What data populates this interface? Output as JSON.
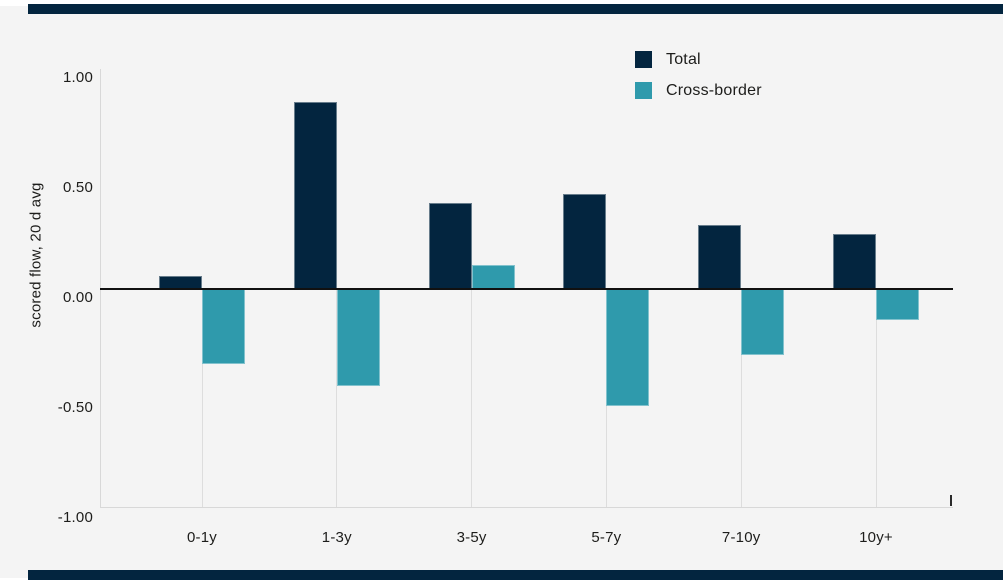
{
  "frame": {
    "band_color": "#03253f",
    "field_color": "#f4f4f4"
  },
  "legend": {
    "items": [
      {
        "label": "Total",
        "color": "#03253f"
      },
      {
        "label": "Cross-border",
        "color": "#2f9aac"
      }
    ]
  },
  "chart_data": {
    "type": "bar",
    "title": "",
    "categories": [
      "0-1y",
      "1-3y",
      "3-5y",
      "5-7y",
      "7-10y",
      "10y+"
    ],
    "series": [
      {
        "name": "Total",
        "color": "#03253f",
        "values": [
          0.06,
          0.85,
          0.39,
          0.43,
          0.29,
          0.25
        ]
      },
      {
        "name": "Cross-border",
        "color": "#2f9aac",
        "values": [
          -0.34,
          -0.44,
          0.11,
          -0.53,
          -0.3,
          -0.14
        ]
      }
    ],
    "xlabel": "",
    "ylabel": "scored flow, 20 d avg",
    "ylim": [
      -1.0,
      1.0
    ],
    "yticks": [
      1.0,
      0.5,
      0.0,
      -0.5,
      -1.0
    ],
    "ytick_labels": [
      "1.00",
      "0.50",
      "0.00",
      "-0.50",
      "-1.00"
    ],
    "baseline": 0,
    "grid": false,
    "legend_position": "top-right"
  }
}
